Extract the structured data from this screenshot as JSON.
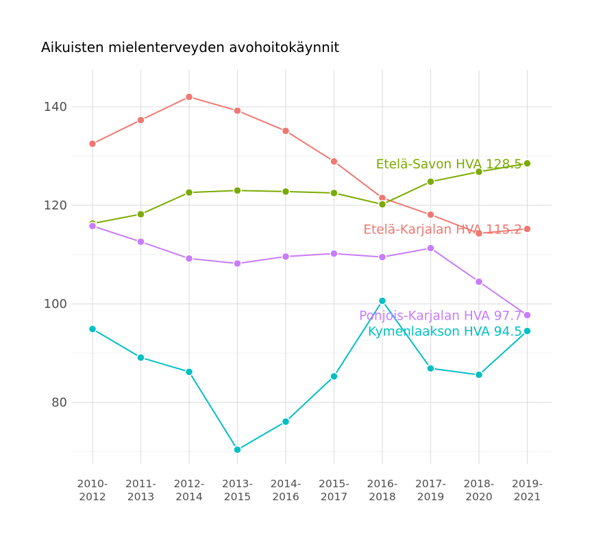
{
  "chart_data": {
    "type": "line",
    "title": "Aikuisten mielenterveyden avohoitokäynnit",
    "xlabel": "",
    "ylabel": "",
    "categories": [
      "2010-\n2012",
      "2011-\n2013",
      "2012-\n2014",
      "2013-\n2015",
      "2014-\n2016",
      "2015-\n2017",
      "2016-\n2018",
      "2017-\n2019",
      "2018-\n2020",
      "2019-\n2021"
    ],
    "ylim": [
      67.5,
      147.5
    ],
    "yticks": [
      80,
      100,
      120,
      140
    ],
    "grid": true,
    "legend": "end-labels",
    "series": [
      {
        "name": "Etelä-Karjalan HVA",
        "color": "#f07870",
        "values": [
          132.5,
          137.3,
          142.0,
          139.2,
          135.1,
          128.9,
          121.5,
          118.1,
          114.3,
          115.2
        ],
        "end_label": "Etelä-Karjalan HVA 115.2"
      },
      {
        "name": "Etelä-Savon HVA",
        "color": "#7caa00",
        "values": [
          116.3,
          118.2,
          122.6,
          123.0,
          122.8,
          122.5,
          120.2,
          124.8,
          126.8,
          128.5
        ],
        "end_label": "Etelä-Savon HVA 128.5"
      },
      {
        "name": "Pohjois-Karjalan HVA",
        "color": "#c77cff",
        "values": [
          115.8,
          112.6,
          109.2,
          108.2,
          109.6,
          110.2,
          109.5,
          111.3,
          104.5,
          97.7
        ],
        "end_label": "Pohjois-Karjalan HVA 97.7"
      },
      {
        "name": "Kymenlaakson HVA",
        "color": "#00bfc4",
        "values": [
          94.9,
          89.1,
          86.2,
          70.4,
          76.1,
          85.3,
          100.6,
          86.9,
          85.6,
          94.5
        ],
        "end_label": "Kymenlaakson HVA 94.5"
      }
    ]
  }
}
